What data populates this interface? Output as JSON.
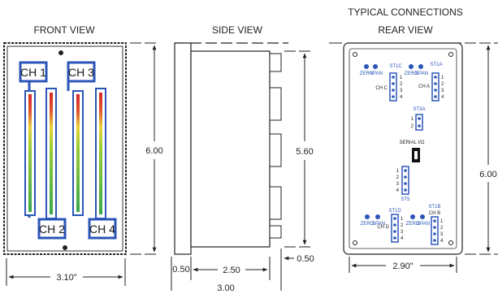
{
  "titles": {
    "front": "FRONT VIEW",
    "side": "SIDE VIEW",
    "typical": "TYPICAL CONNECTIONS",
    "rear": "REAR VIEW"
  },
  "front": {
    "channels": [
      "CH 1",
      "CH 2",
      "CH 3",
      "CH 4"
    ],
    "height_dim": "6.00",
    "width_dim": "3.10\""
  },
  "side": {
    "height_dim": "5.60",
    "left_offset": "0.50",
    "depth": "2.50",
    "right_offset": "0.50",
    "total": "3.00"
  },
  "rear": {
    "height_dim": "6.00",
    "width_dim": "2.90\"",
    "st1c": "ST1C",
    "st1a": "ST1A",
    "st3a": "ST3A",
    "st5": "ST5",
    "st1d": "ST1D",
    "st1b": "ST1B",
    "chc": "CH C",
    "cha": "CH A",
    "chd": "CH D",
    "chb": "CH B",
    "serial": "SERIAL I/O",
    "zero": "ZERO",
    "span": "SPAN",
    "pins": [
      "1",
      "2",
      "3",
      "4"
    ],
    "pins2": [
      "1",
      "2"
    ]
  }
}
